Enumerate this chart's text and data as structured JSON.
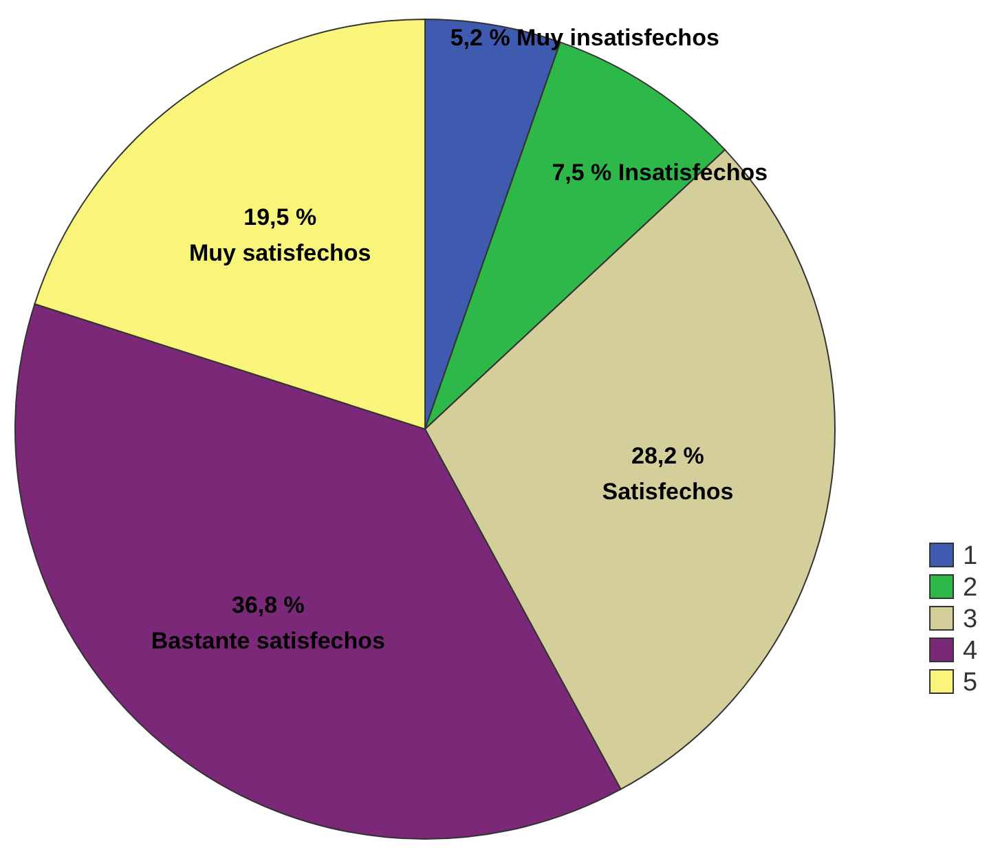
{
  "chart_data": {
    "type": "pie",
    "categories": [
      "1",
      "2",
      "3",
      "4",
      "5"
    ],
    "values": [
      5.2,
      7.5,
      28.2,
      36.8,
      19.5
    ],
    "colors": [
      "#3f5bb0",
      "#2fb84a",
      "#d4cf9a",
      "#7b2878",
      "#f9f47a"
    ],
    "value_labels": [
      "5,2 % Muy insatisfechos",
      "7,5 % Insatisfechos",
      "28,2 % Satisfechos",
      "36,8 % Bastante satisfechos",
      "19,5 % Muy satisfechos"
    ],
    "legend": "right"
  }
}
